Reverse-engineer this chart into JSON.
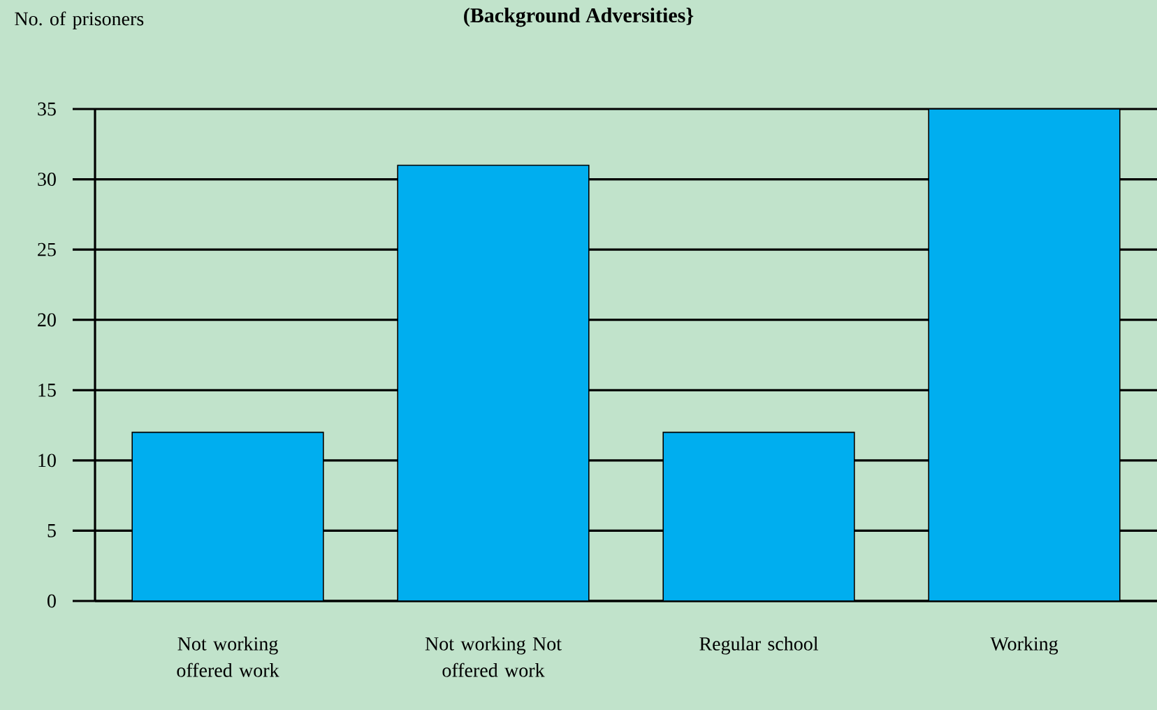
{
  "chart_data": {
    "type": "bar",
    "title": "(Background Adversities}",
    "ylabel": "No. of prisoners",
    "categories": [
      "Not working offered work",
      "Not working Not offered work",
      "Regular school",
      "Working"
    ],
    "values": [
      12,
      31,
      12,
      35
    ],
    "color": "#00aeef",
    "ylim": [
      0,
      35
    ],
    "yticks": [
      0,
      5,
      10,
      15,
      20,
      25,
      30,
      35
    ],
    "grid": "y"
  }
}
